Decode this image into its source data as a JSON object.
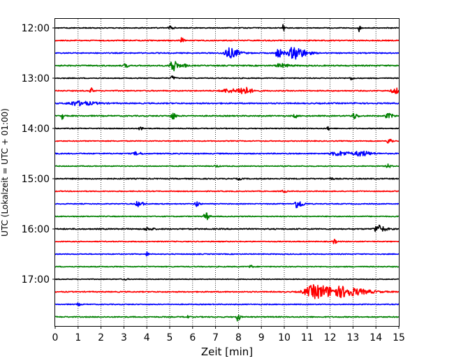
{
  "chart_data": {
    "type": "line",
    "title": "",
    "xlabel": "Zeit  [min]",
    "ylabel": "UTC (Lokalzeit = UTC + 01:00)",
    "xlim": [
      0,
      15
    ],
    "x_ticks": [
      0,
      1,
      2,
      3,
      4,
      5,
      6,
      7,
      8,
      9,
      10,
      11,
      12,
      13,
      14,
      15
    ],
    "x_tick_labels": [
      "0",
      "1",
      "2",
      "3",
      "4",
      "5",
      "6",
      "7",
      "8",
      "9",
      "10",
      "11",
      "12",
      "13",
      "14",
      "15"
    ],
    "y_ticks": [
      "12:00",
      "13:00",
      "14:00",
      "15:00",
      "16:00",
      "17:00"
    ],
    "y_tick_rows": [
      0,
      4,
      8,
      12,
      16,
      20
    ],
    "grid": "vertical dotted",
    "trace_colors": [
      "#000000",
      "#ff0000",
      "#0000ff",
      "#008000"
    ],
    "rows": [
      {
        "start": "12:00",
        "color": "#000000",
        "noise": 0.6,
        "events": [
          [
            5.0,
            2.5,
            0.12
          ],
          [
            9.95,
            7.0,
            0.05
          ],
          [
            13.25,
            5.0,
            0.05
          ]
        ]
      },
      {
        "start": "12:15",
        "color": "#ff0000",
        "noise": 0.7,
        "events": [
          [
            5.5,
            4.0,
            0.08
          ]
        ]
      },
      {
        "start": "12:30",
        "color": "#0000ff",
        "noise": 0.7,
        "events": [
          [
            7.55,
            7.0,
            0.35
          ],
          [
            9.7,
            6.0,
            0.2
          ],
          [
            10.4,
            9.0,
            0.4
          ]
        ]
      },
      {
        "start": "12:45",
        "color": "#008000",
        "noise": 0.8,
        "events": [
          [
            3.05,
            2.5,
            0.1
          ],
          [
            5.1,
            9.0,
            0.18
          ],
          [
            5.6,
            2.5,
            0.1
          ],
          [
            9.8,
            2.5,
            0.3
          ]
        ]
      },
      {
        "start": "13:00",
        "color": "#000000",
        "noise": 0.6,
        "events": [
          [
            5.1,
            3.0,
            0.1
          ],
          [
            12.9,
            2.0,
            0.1
          ]
        ]
      },
      {
        "start": "13:15",
        "color": "#ff0000",
        "noise": 0.7,
        "events": [
          [
            1.55,
            4.0,
            0.08
          ],
          [
            7.5,
            2.5,
            0.5
          ],
          [
            8.15,
            5.0,
            0.3
          ],
          [
            14.8,
            4.0,
            0.25
          ]
        ]
      },
      {
        "start": "13:30",
        "color": "#0000ff",
        "noise": 0.8,
        "events": [
          [
            0.9,
            3.0,
            0.6
          ],
          [
            13.1,
            2.5,
            0.05
          ]
        ]
      },
      {
        "start": "13:45",
        "color": "#008000",
        "noise": 0.8,
        "events": [
          [
            0.3,
            5.0,
            0.05
          ],
          [
            5.1,
            5.0,
            0.12
          ],
          [
            10.45,
            3.0,
            0.08
          ],
          [
            13.0,
            4.0,
            0.15
          ],
          [
            14.5,
            3.0,
            0.2
          ]
        ]
      },
      {
        "start": "14:00",
        "color": "#000000",
        "noise": 0.6,
        "events": [
          [
            3.7,
            3.0,
            0.08
          ],
          [
            11.9,
            4.0,
            0.05
          ]
        ]
      },
      {
        "start": "14:15",
        "color": "#ff0000",
        "noise": 0.6,
        "events": [
          [
            14.55,
            4.0,
            0.12
          ]
        ]
      },
      {
        "start": "14:30",
        "color": "#0000ff",
        "noise": 0.7,
        "events": [
          [
            3.5,
            2.0,
            0.2
          ],
          [
            12.3,
            3.0,
            0.5
          ],
          [
            13.3,
            3.5,
            0.35
          ]
        ]
      },
      {
        "start": "14:45",
        "color": "#008000",
        "noise": 0.6,
        "events": [
          [
            7.0,
            1.5,
            0.1
          ],
          [
            14.5,
            3.0,
            0.1
          ]
        ]
      },
      {
        "start": "15:00",
        "color": "#000000",
        "noise": 0.7,
        "events": [
          [
            8.0,
            1.5,
            0.1
          ],
          [
            12.0,
            1.5,
            0.1
          ]
        ]
      },
      {
        "start": "15:15",
        "color": "#ff0000",
        "noise": 0.6,
        "events": [
          [
            9.95,
            2.0,
            0.1
          ]
        ]
      },
      {
        "start": "15:30",
        "color": "#0000ff",
        "noise": 0.6,
        "events": [
          [
            3.6,
            3.5,
            0.2
          ],
          [
            6.15,
            4.5,
            0.1
          ],
          [
            10.55,
            6.0,
            0.2
          ]
        ]
      },
      {
        "start": "15:45",
        "color": "#008000",
        "noise": 0.6,
        "events": [
          [
            6.55,
            6.0,
            0.12
          ]
        ]
      },
      {
        "start": "16:00",
        "color": "#000000",
        "noise": 0.8,
        "events": [
          [
            4.0,
            2.0,
            0.2
          ],
          [
            14.05,
            5.5,
            0.25
          ]
        ]
      },
      {
        "start": "16:15",
        "color": "#ff0000",
        "noise": 0.6,
        "events": [
          [
            12.15,
            3.0,
            0.1
          ]
        ]
      },
      {
        "start": "16:30",
        "color": "#0000ff",
        "noise": 0.6,
        "events": [
          [
            4.0,
            4.0,
            0.05
          ]
        ]
      },
      {
        "start": "16:45",
        "color": "#008000",
        "noise": 0.6,
        "events": [
          [
            8.5,
            2.0,
            0.1
          ]
        ]
      },
      {
        "start": "17:00",
        "color": "#000000",
        "noise": 0.5,
        "events": [
          [
            3.0,
            1.2,
            0.1
          ]
        ]
      },
      {
        "start": "17:15",
        "color": "#ff0000",
        "noise": 0.7,
        "events": [
          [
            11.3,
            9.5,
            0.8
          ],
          [
            12.6,
            5.0,
            0.8
          ]
        ]
      },
      {
        "start": "17:30",
        "color": "#0000ff",
        "noise": 0.6,
        "events": [
          [
            1.0,
            1.5,
            0.1
          ]
        ]
      },
      {
        "start": "17:45",
        "color": "#008000",
        "noise": 0.7,
        "events": [
          [
            7.95,
            6.0,
            0.08
          ],
          [
            5.7,
            2.0,
            0.1
          ]
        ]
      }
    ]
  }
}
